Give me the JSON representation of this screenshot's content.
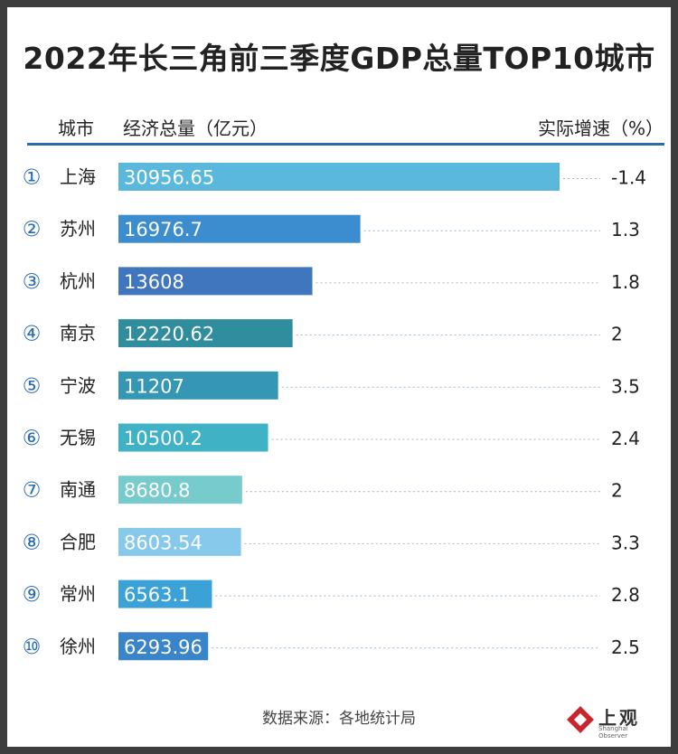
{
  "chart_data": {
    "type": "bar",
    "orientation": "horizontal",
    "title": "2022年长三角前三季度GDP总量TOP10城市",
    "header": {
      "city": "城市",
      "value": "经济总量（亿元）",
      "growth": "实际增速（%）"
    },
    "ranks": [
      "①",
      "②",
      "③",
      "④",
      "⑤",
      "⑥",
      "⑦",
      "⑧",
      "⑨",
      "⑩"
    ],
    "categories": [
      "上海",
      "苏州",
      "杭州",
      "南京",
      "宁波",
      "无锡",
      "南通",
      "合肥",
      "常州",
      "徐州"
    ],
    "value_labels": [
      "30956.65",
      "16976.7",
      "13608",
      "12220.62",
      "11207",
      "10500.2",
      "8680.8",
      "8603.54",
      "6563.1",
      "6293.96"
    ],
    "values": [
      30956.65,
      16976.7,
      13608,
      12220.62,
      11207,
      10500.2,
      8680.8,
      8603.54,
      6563.1,
      6293.96
    ],
    "growth_labels": [
      "-1.4",
      "1.3",
      "1.8",
      "2",
      "3.5",
      "2.4",
      "2",
      "3.3",
      "2.8",
      "2.5"
    ],
    "growth": [
      -1.4,
      1.3,
      1.8,
      2,
      3.5,
      2.4,
      2,
      3.3,
      2.8,
      2.5
    ],
    "bar_colors": [
      "#5bb8dd",
      "#3b8dd0",
      "#3f76bd",
      "#2f8d9e",
      "#3597b3",
      "#3fb2c5",
      "#77cbcc",
      "#86c9ea",
      "#3aa2d6",
      "#3a84c9"
    ],
    "xlim": [
      0,
      30956.65
    ],
    "grid": false,
    "legend": "none"
  },
  "footer": {
    "source": "数据来源：各地统计局",
    "logo_text": "上观",
    "logo_sub": "Shanghai Observer"
  }
}
